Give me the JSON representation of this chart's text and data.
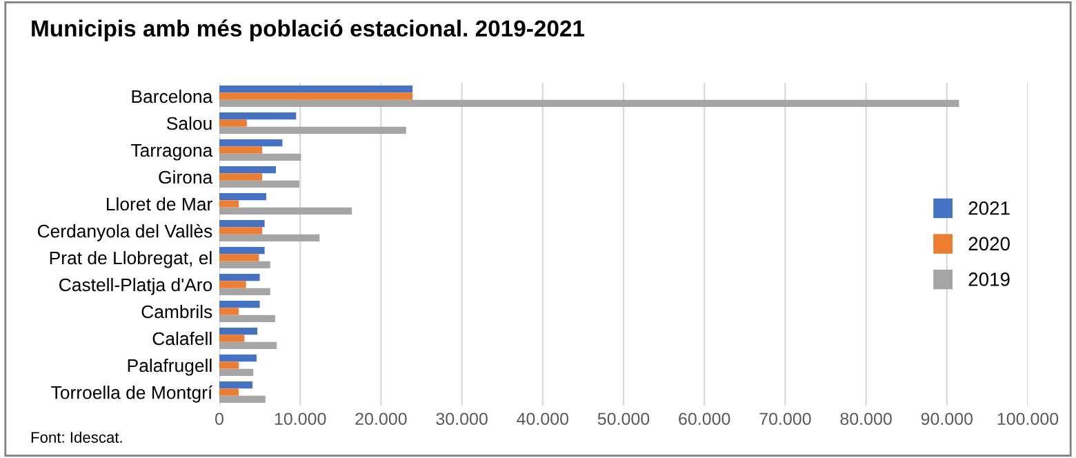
{
  "chart_data": {
    "type": "bar",
    "orientation": "horizontal",
    "title": "Municipis amb més població estacional. 2019-2021",
    "categories": [
      "Barcelona",
      "Salou",
      "Tarragona",
      "Girona",
      "Lloret de Mar",
      "Cerdanyola del Vallès",
      "Prat de Llobregat, el",
      "Castell-Platja d'Aro",
      "Cambrils",
      "Calafell",
      "Palafrugell",
      "Torroella de Montgrí"
    ],
    "series": [
      {
        "name": "2021",
        "color": "#4472c4",
        "values": [
          23900,
          9500,
          7800,
          7000,
          5800,
          5600,
          5600,
          5000,
          5000,
          4700,
          4600,
          4100
        ]
      },
      {
        "name": "2020",
        "color": "#ed7d31",
        "values": [
          23900,
          3400,
          5300,
          5300,
          2400,
          5300,
          4900,
          3300,
          2400,
          3100,
          2400,
          2400
        ]
      },
      {
        "name": "2019",
        "color": "#a5a5a5",
        "values": [
          91500,
          23100,
          10100,
          9900,
          16400,
          12400,
          6300,
          6300,
          6900,
          7100,
          4200,
          5700
        ]
      }
    ],
    "xlim": [
      0,
      100000
    ],
    "xticks": [
      0,
      {
        "value": 10000,
        "label": "10.000"
      },
      {
        "value": 20000,
        "label": "20.000"
      },
      {
        "value": 30000,
        "label": "30.000"
      },
      {
        "value": 40000,
        "label": "40.000"
      },
      {
        "value": 50000,
        "label": "50.000"
      },
      {
        "value": 60000,
        "label": "60.000"
      },
      {
        "value": 70000,
        "label": "70.000"
      },
      {
        "value": 80000,
        "label": "80.000"
      },
      {
        "value": 90000,
        "label": "90.000"
      },
      {
        "value": 100000,
        "label": "100.000"
      }
    ],
    "grid": "x",
    "legend": "right",
    "annotations": [
      "Font: Idescat."
    ]
  }
}
